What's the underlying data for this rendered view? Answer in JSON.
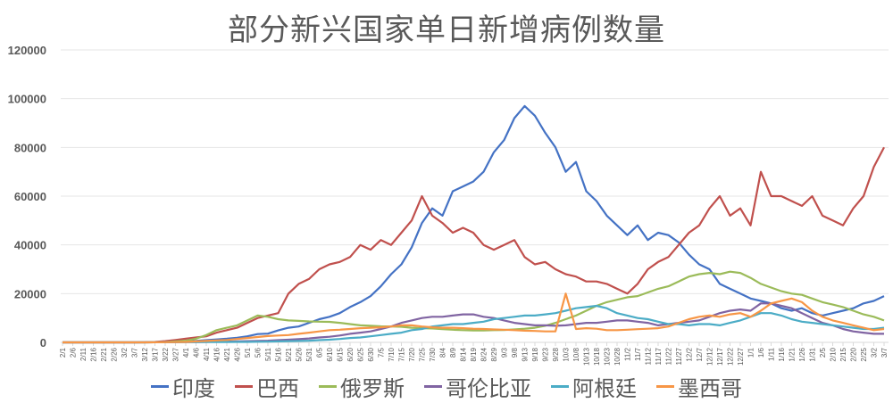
{
  "chart_data": {
    "type": "line",
    "title": "部分新兴国家单日新增病例数量",
    "xlabel": "",
    "ylabel": "",
    "ylim": [
      0,
      120000
    ],
    "yticks": [
      0,
      20000,
      40000,
      60000,
      80000,
      100000,
      120000
    ],
    "grid": true,
    "legend_position": "bottom",
    "x": [
      "2/1",
      "2/6",
      "2/11",
      "2/16",
      "2/21",
      "2/26",
      "3/2",
      "3/7",
      "3/12",
      "3/17",
      "3/22",
      "3/27",
      "4/1",
      "4/6",
      "4/11",
      "4/16",
      "4/21",
      "4/26",
      "5/1",
      "5/6",
      "5/11",
      "5/16",
      "5/21",
      "5/26",
      "5/31",
      "6/5",
      "6/10",
      "6/15",
      "6/20",
      "6/25",
      "6/30",
      "7/5",
      "7/10",
      "7/15",
      "7/20",
      "7/25",
      "7/30",
      "8/4",
      "8/9",
      "8/14",
      "8/19",
      "8/24",
      "8/29",
      "9/3",
      "9/8",
      "9/13",
      "9/18",
      "9/23",
      "9/28",
      "10/3",
      "10/8",
      "10/13",
      "10/18",
      "10/23",
      "10/28",
      "11/2",
      "11/7",
      "11/12",
      "11/17",
      "11/22",
      "11/27",
      "12/2",
      "12/7",
      "12/12",
      "12/17",
      "12/22",
      "12/27",
      "1/1",
      "1/6",
      "1/11",
      "1/16",
      "1/21",
      "1/26",
      "1/31",
      "2/5",
      "2/10",
      "2/15",
      "2/20",
      "2/25",
      "3/2",
      "3/7"
    ],
    "series": [
      {
        "name": "印度",
        "color": "#4472C4",
        "values": [
          0,
          0,
          0,
          0,
          0,
          0,
          0,
          10,
          20,
          30,
          100,
          150,
          400,
          600,
          900,
          1200,
          1500,
          1900,
          2500,
          3400,
          3600,
          4900,
          6000,
          6500,
          8000,
          9500,
          10500,
          12000,
          14500,
          16500,
          19000,
          23000,
          28000,
          32000,
          39000,
          49000,
          55000,
          52000,
          62000,
          64000,
          66000,
          70000,
          78000,
          83000,
          92000,
          97000,
          93000,
          86000,
          80000,
          70000,
          74000,
          62000,
          58000,
          52000,
          48000,
          44000,
          48000,
          42000,
          45000,
          44000,
          41000,
          36000,
          32000,
          30000,
          24000,
          22000,
          20000,
          18000,
          17000,
          16000,
          14000,
          13000,
          14000,
          12000,
          11000,
          12000,
          13000,
          14000,
          16000,
          17000,
          19000
        ]
      },
      {
        "name": "巴西",
        "color": "#C0504D",
        "values": [
          0,
          0,
          0,
          0,
          0,
          0,
          0,
          0,
          50,
          200,
          500,
          1000,
          1500,
          2000,
          2500,
          4000,
          5000,
          6000,
          8000,
          10000,
          11000,
          12000,
          20000,
          24000,
          26000,
          30000,
          32000,
          33000,
          35000,
          40000,
          38000,
          42000,
          40000,
          45000,
          50000,
          60000,
          52000,
          49000,
          45000,
          47000,
          45000,
          40000,
          38000,
          40000,
          42000,
          35000,
          32000,
          33000,
          30000,
          28000,
          27000,
          25000,
          25000,
          24000,
          22000,
          20000,
          24000,
          30000,
          33000,
          35000,
          40000,
          45000,
          48000,
          55000,
          60000,
          52000,
          55000,
          48000,
          70000,
          60000,
          60000,
          58000,
          56000,
          60000,
          52000,
          50000,
          48000,
          55000,
          60000,
          72000,
          80000
        ]
      },
      {
        "name": "俄罗斯",
        "color": "#9BBB59",
        "values": [
          0,
          0,
          0,
          0,
          0,
          0,
          0,
          0,
          10,
          50,
          150,
          400,
          700,
          1500,
          3000,
          5000,
          6000,
          7000,
          9000,
          11000,
          10500,
          9500,
          9000,
          8800,
          8600,
          8500,
          8400,
          8000,
          7500,
          7000,
          6800,
          6600,
          6500,
          6400,
          6000,
          5800,
          5700,
          5400,
          5200,
          5000,
          4900,
          4900,
          5000,
          5100,
          5300,
          5600,
          6000,
          6800,
          8000,
          9500,
          11000,
          13000,
          15000,
          16500,
          17500,
          18500,
          19000,
          20500,
          22000,
          23000,
          25000,
          27000,
          28000,
          28500,
          28000,
          29000,
          28500,
          26500,
          24000,
          22500,
          21000,
          20000,
          19500,
          18000,
          16500,
          15500,
          14500,
          13000,
          11500,
          10500,
          9000
        ]
      },
      {
        "name": "哥伦比亚",
        "color": "#8064A2",
        "values": [
          0,
          0,
          0,
          0,
          0,
          0,
          0,
          0,
          10,
          20,
          50,
          80,
          100,
          150,
          200,
          300,
          300,
          400,
          500,
          600,
          700,
          900,
          1100,
          1300,
          1600,
          2000,
          2300,
          2800,
          3500,
          4000,
          4500,
          5500,
          6500,
          8000,
          9000,
          10000,
          10500,
          10500,
          11000,
          11500,
          11500,
          10500,
          10000,
          9000,
          8000,
          7500,
          7000,
          7000,
          6800,
          7000,
          7500,
          8000,
          8000,
          8500,
          9000,
          9000,
          8500,
          8000,
          7000,
          7500,
          8000,
          8500,
          9000,
          10500,
          12000,
          13000,
          13500,
          13000,
          16000,
          16000,
          15000,
          14000,
          12000,
          10000,
          8000,
          7000,
          5500,
          4500,
          4000,
          3500,
          3500
        ]
      },
      {
        "name": "阿根廷",
        "color": "#4BACC6",
        "values": [
          0,
          0,
          0,
          0,
          0,
          0,
          0,
          0,
          10,
          20,
          50,
          80,
          100,
          100,
          100,
          150,
          150,
          200,
          200,
          250,
          300,
          400,
          500,
          600,
          700,
          900,
          1100,
          1400,
          1800,
          2000,
          2500,
          3000,
          3500,
          4000,
          5000,
          5500,
          6500,
          7000,
          7500,
          7500,
          8000,
          8500,
          9500,
          10000,
          10500,
          11000,
          11000,
          11500,
          12000,
          13000,
          14000,
          14500,
          15000,
          14000,
          12000,
          11000,
          10000,
          9500,
          8500,
          7500,
          7500,
          7000,
          7500,
          7500,
          7000,
          8000,
          9000,
          10500,
          12000,
          12000,
          11000,
          9500,
          8500,
          8000,
          7500,
          7000,
          6500,
          6000,
          5500,
          5500,
          6000
        ]
      },
      {
        "name": "墨西哥",
        "color": "#F79646",
        "values": [
          0,
          0,
          0,
          0,
          0,
          0,
          0,
          0,
          10,
          30,
          60,
          100,
          200,
          400,
          600,
          800,
          1000,
          1400,
          1800,
          2200,
          2600,
          2800,
          3000,
          3500,
          4000,
          4500,
          5000,
          5200,
          5500,
          5800,
          6000,
          6200,
          6500,
          7000,
          7000,
          6500,
          6200,
          6000,
          6000,
          5800,
          5600,
          5500,
          5300,
          5200,
          5000,
          4800,
          4700,
          4500,
          4500,
          20000,
          5500,
          5800,
          5600,
          5000,
          5000,
          5200,
          5400,
          5600,
          5800,
          6500,
          8000,
          9500,
          10500,
          11000,
          10500,
          11500,
          12000,
          10500,
          13000,
          16000,
          17000,
          18000,
          16500,
          13000,
          10500,
          9000,
          8000,
          7000,
          6000,
          5000,
          5500
        ]
      }
    ]
  }
}
